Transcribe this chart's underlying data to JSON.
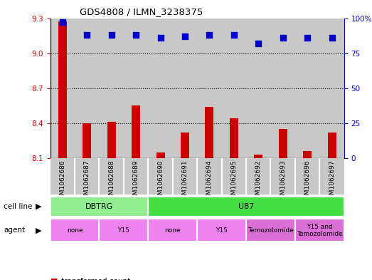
{
  "title": "GDS4808 / ILMN_3238375",
  "samples": [
    "GSM1062686",
    "GSM1062687",
    "GSM1062688",
    "GSM1062689",
    "GSM1062690",
    "GSM1062691",
    "GSM1062694",
    "GSM1062695",
    "GSM1062692",
    "GSM1062693",
    "GSM1062696",
    "GSM1062697"
  ],
  "transformed_count": [
    9.27,
    8.4,
    8.41,
    8.55,
    8.15,
    8.32,
    8.54,
    8.44,
    8.13,
    8.35,
    8.16,
    8.32
  ],
  "percentile_rank": [
    97,
    88,
    88,
    88,
    86,
    87,
    88,
    88,
    82,
    86,
    86,
    86
  ],
  "ylim_left": [
    8.1,
    9.3
  ],
  "ylim_right": [
    0,
    100
  ],
  "yticks_left": [
    8.1,
    8.4,
    8.7,
    9.0,
    9.3
  ],
  "yticks_right": [
    0,
    25,
    50,
    75,
    100
  ],
  "cell_line_groups": [
    {
      "label": "DBTRG",
      "start": 0,
      "end": 3,
      "color": "#90EE90"
    },
    {
      "label": "U87",
      "start": 4,
      "end": 11,
      "color": "#44DD44"
    }
  ],
  "agent_groups": [
    {
      "label": "none",
      "start": 0,
      "end": 1,
      "color": "#EE82EE"
    },
    {
      "label": "Y15",
      "start": 2,
      "end": 3,
      "color": "#EE82EE"
    },
    {
      "label": "none",
      "start": 4,
      "end": 5,
      "color": "#EE82EE"
    },
    {
      "label": "Y15",
      "start": 6,
      "end": 7,
      "color": "#EE82EE"
    },
    {
      "label": "Temozolomide",
      "start": 8,
      "end": 9,
      "color": "#DA70D6"
    },
    {
      "label": "Y15 and\nTemozolomide",
      "start": 10,
      "end": 11,
      "color": "#DA70D6"
    }
  ],
  "bar_color": "#CC0000",
  "dot_color": "#0000CC",
  "bar_width": 0.35,
  "dot_size": 30,
  "background_color": "#ffffff",
  "left_axis_color": "#CC0000",
  "right_axis_color": "#0000CC",
  "sample_bg_color": "#C8C8C8",
  "plot_bg_color": "#ffffff"
}
